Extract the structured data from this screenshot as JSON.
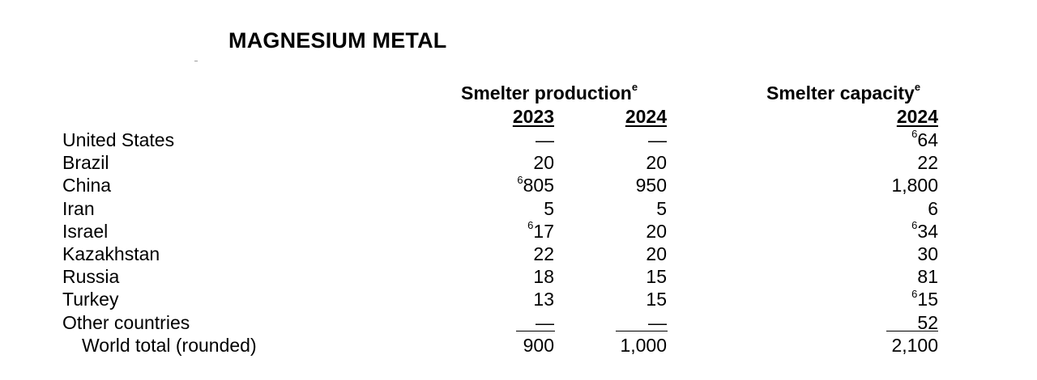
{
  "title": "MAGNESIUM METAL",
  "headers": {
    "production": "Smelter production",
    "capacity": "Smelter capacity",
    "superscript_e": "e",
    "year_2023": "2023",
    "year_2024": "2024",
    "year_capacity": "2024"
  },
  "rows": [
    {
      "country": "United States",
      "p2023": "—",
      "p2023_note": "",
      "p2024": "—",
      "cap": "64",
      "cap_note": "6"
    },
    {
      "country": "Brazil",
      "p2023": "20",
      "p2023_note": "",
      "p2024": "20",
      "cap": "22",
      "cap_note": ""
    },
    {
      "country": "China",
      "p2023": "805",
      "p2023_note": "6",
      "p2024": "950",
      "cap": "1,800",
      "cap_note": ""
    },
    {
      "country": "Iran",
      "p2023": "5",
      "p2023_note": "",
      "p2024": "5",
      "cap": "6",
      "cap_note": ""
    },
    {
      "country": "Israel",
      "p2023": "17",
      "p2023_note": "6",
      "p2024": "20",
      "cap": "34",
      "cap_note": "6"
    },
    {
      "country": "Kazakhstan",
      "p2023": "22",
      "p2023_note": "",
      "p2024": "20",
      "cap": "30",
      "cap_note": ""
    },
    {
      "country": "Russia",
      "p2023": "18",
      "p2023_note": "",
      "p2024": "15",
      "cap": "81",
      "cap_note": ""
    },
    {
      "country": "Turkey",
      "p2023": "13",
      "p2023_note": "",
      "p2024": "15",
      "cap": "15",
      "cap_note": "6"
    },
    {
      "country": "Other countries",
      "p2023": "—",
      "p2023_note": "",
      "p2024": "—",
      "cap": "52",
      "cap_note": ""
    }
  ],
  "total": {
    "country": "World total (rounded)",
    "p2023": "900",
    "p2024": "1,000",
    "cap": "2,100"
  }
}
